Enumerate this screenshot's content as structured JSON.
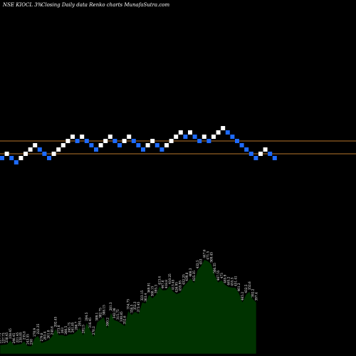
{
  "header": {
    "symbol": "NSE KIOCL 3%",
    "caption": "Closing Daily data  Renko  charts MunafaSutra.com"
  },
  "colors": {
    "background": "#000000",
    "up_brick": "#ffffff",
    "down_brick": "#1e6bff",
    "reference_line": "#b8762c",
    "area_fill": "#003300",
    "area_stroke": "#000000",
    "text": "#ffffff"
  },
  "chart_data": [
    {
      "type": "renko",
      "title": "NSE KIOCL 3%~ Closing Daily data Renko charts MunafaSutra.com",
      "bricks": [
        {
          "level": 0,
          "dir": "down"
        },
        {
          "level": 1,
          "dir": "up"
        },
        {
          "level": 0,
          "dir": "down"
        },
        {
          "level": -1,
          "dir": "down"
        },
        {
          "level": 0,
          "dir": "up"
        },
        {
          "level": 1,
          "dir": "up"
        },
        {
          "level": 2,
          "dir": "up"
        },
        {
          "level": 3,
          "dir": "up"
        },
        {
          "level": 2,
          "dir": "down"
        },
        {
          "level": 1,
          "dir": "down"
        },
        {
          "level": 0,
          "dir": "down"
        },
        {
          "level": 1,
          "dir": "up"
        },
        {
          "level": 2,
          "dir": "up"
        },
        {
          "level": 3,
          "dir": "up"
        },
        {
          "level": 4,
          "dir": "up"
        },
        {
          "level": 5,
          "dir": "up"
        },
        {
          "level": 4,
          "dir": "down"
        },
        {
          "level": 5,
          "dir": "up"
        },
        {
          "level": 4,
          "dir": "down"
        },
        {
          "level": 3,
          "dir": "down"
        },
        {
          "level": 2,
          "dir": "down"
        },
        {
          "level": 3,
          "dir": "up"
        },
        {
          "level": 4,
          "dir": "up"
        },
        {
          "level": 5,
          "dir": "up"
        },
        {
          "level": 4,
          "dir": "down"
        },
        {
          "level": 3,
          "dir": "down"
        },
        {
          "level": 4,
          "dir": "up"
        },
        {
          "level": 5,
          "dir": "up"
        },
        {
          "level": 4,
          "dir": "down"
        },
        {
          "level": 3,
          "dir": "down"
        },
        {
          "level": 2,
          "dir": "down"
        },
        {
          "level": 3,
          "dir": "up"
        },
        {
          "level": 4,
          "dir": "up"
        },
        {
          "level": 3,
          "dir": "down"
        },
        {
          "level": 2,
          "dir": "down"
        },
        {
          "level": 3,
          "dir": "up"
        },
        {
          "level": 4,
          "dir": "up"
        },
        {
          "level": 5,
          "dir": "up"
        },
        {
          "level": 6,
          "dir": "up"
        },
        {
          "level": 5,
          "dir": "down"
        },
        {
          "level": 6,
          "dir": "up"
        },
        {
          "level": 5,
          "dir": "down"
        },
        {
          "level": 4,
          "dir": "down"
        },
        {
          "level": 5,
          "dir": "up"
        },
        {
          "level": 4,
          "dir": "down"
        },
        {
          "level": 5,
          "dir": "up"
        },
        {
          "level": 6,
          "dir": "up"
        },
        {
          "level": 7,
          "dir": "up"
        },
        {
          "level": 6,
          "dir": "down"
        },
        {
          "level": 5,
          "dir": "down"
        },
        {
          "level": 4,
          "dir": "down"
        },
        {
          "level": 3,
          "dir": "down"
        },
        {
          "level": 2,
          "dir": "down"
        },
        {
          "level": 1,
          "dir": "down"
        },
        {
          "level": 0,
          "dir": "down"
        },
        {
          "level": 1,
          "dir": "up"
        },
        {
          "level": 2,
          "dir": "up"
        },
        {
          "level": 1,
          "dir": "down"
        },
        {
          "level": 0,
          "dir": "down"
        }
      ],
      "reference_levels": [
        4,
        1
      ]
    },
    {
      "type": "area",
      "values": [
        229,
        230,
        231,
        244,
        229,
        231,
        232,
        241,
        226,
        225,
        251,
        259,
        236,
        240,
        245,
        257,
        282,
        261,
        262,
        258,
        264,
        264,
        272,
        285,
        262,
        302,
        279,
        257,
        302,
        311,
        320,
        285,
        335,
        310,
        306,
        299,
        291,
        339,
        327,
        337,
        330,
        367,
        364,
        392,
        381,
        391,
        419,
        406,
        407,
        421,
        402,
        394,
        399,
        419,
        431,
        445,
        431,
        471,
        484,
        505,
        500,
        491,
        456,
        432,
        439,
        424,
        417,
        415,
        414,
        397,
        368,
        392,
        402,
        378,
        367
      ],
      "labels": [
        "227.73",
        "237.73",
        "238.45",
        "238.45",
        "246.45",
        "221.45",
        "238.85",
        "235.8",
        "243.55",
        "250",
        "270.9",
        "222.35",
        "279.8",
        "283.4",
        "261.8",
        "248.6",
        "292.45",
        "273.6",
        "263",
        "260.5",
        "295.75",
        "261.85",
        "286.7",
        "291.5",
        "292.5",
        "284.5",
        "316.45",
        "270.2",
        "309.1",
        "302.75",
        "308.15",
        "300.2",
        "281.3",
        "342.36",
        "315.75",
        "330.85",
        "352.6",
        "354.75",
        "338.5",
        "352.3",
        "373.45",
        "323.15",
        "363.4",
        "369.91",
        "388.15",
        "395.3",
        "413.4",
        "447.6",
        "418.8",
        "410.25",
        "413.45",
        "426.95",
        "455.95",
        "452.25",
        "439.8",
        "408.3",
        "425.35",
        "432.5",
        "453",
        "447.6",
        "471.5",
        "509.45",
        "506.55",
        "467.55",
        "473",
        "485.9",
        "465.2",
        "455.5",
        "451.41",
        "461.2",
        "465.2",
        "432.5",
        "352.6",
        "392.2",
        "397.4"
      ]
    }
  ]
}
